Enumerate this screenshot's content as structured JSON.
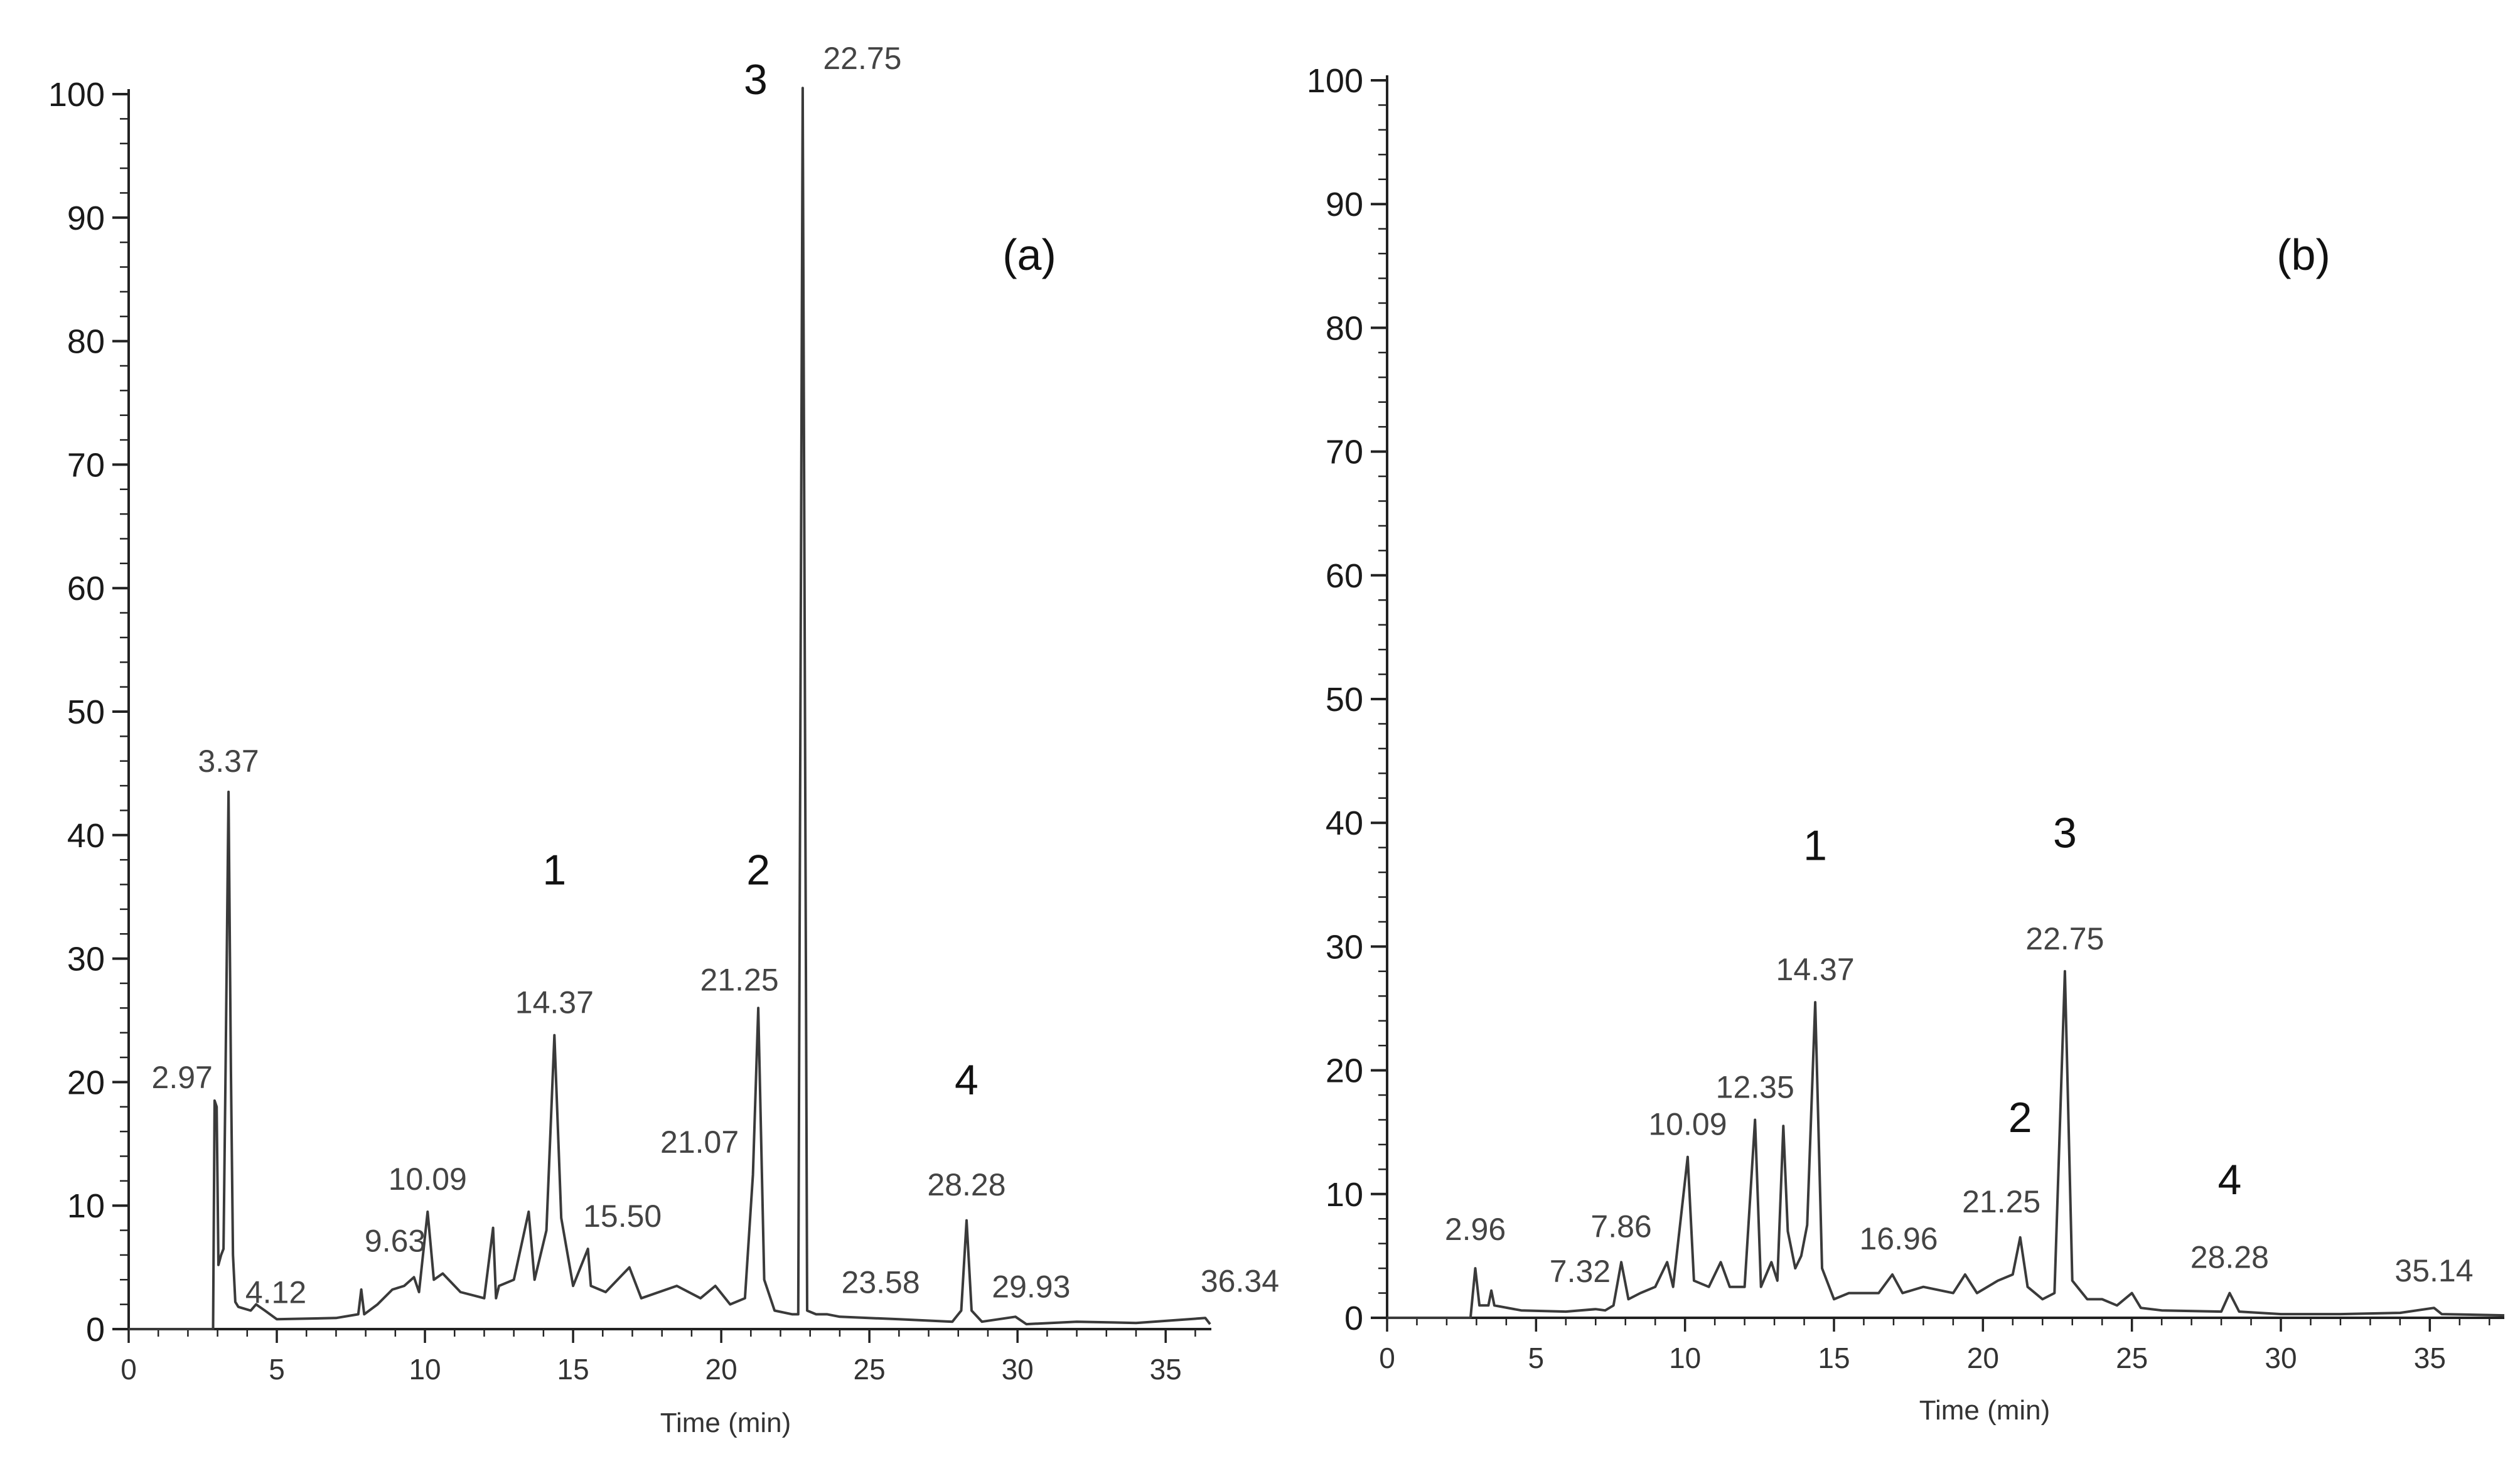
{
  "chart_data": [
    {
      "type": "line",
      "panel_label": "(a)",
      "xlabel": "Time (min)",
      "ylabel": "",
      "xlim": [
        0,
        36.5
      ],
      "ylim": [
        0,
        100
      ],
      "xticks": [
        "0",
        "5",
        "10",
        "15",
        "20",
        "25",
        "30",
        "35"
      ],
      "yticks": [
        "0",
        "10",
        "20",
        "30",
        "40",
        "50",
        "60",
        "70",
        "80",
        "90",
        "100"
      ],
      "peak_labels": [
        {
          "x": 2.97,
          "y": 18.5,
          "label": "2.97"
        },
        {
          "x": 3.37,
          "y": 43.5,
          "label": "3.37"
        },
        {
          "x": 4.12,
          "y": 1.0,
          "label": "4.12"
        },
        {
          "x": 9.63,
          "y": 4.0,
          "label": "9.63"
        },
        {
          "x": 10.09,
          "y": 9.5,
          "label": "10.09"
        },
        {
          "x": 14.37,
          "y": 23.8,
          "label": "14.37"
        },
        {
          "x": 15.5,
          "y": 6.5,
          "label": "15.50"
        },
        {
          "x": 21.07,
          "y": 12.5,
          "label": "21.07"
        },
        {
          "x": 21.25,
          "y": 26.0,
          "label": "21.25"
        },
        {
          "x": 22.75,
          "y": 100.5,
          "label": "22.75"
        },
        {
          "x": 23.58,
          "y": 1.0,
          "label": "23.58"
        },
        {
          "x": 28.28,
          "y": 8.8,
          "label": "28.28"
        },
        {
          "x": 29.93,
          "y": 0.8,
          "label": "29.93"
        },
        {
          "x": 36.34,
          "y": 0.9,
          "label": "36.34"
        }
      ],
      "compound_labels": [
        {
          "x": 14.37,
          "label": "1"
        },
        {
          "x": 21.25,
          "label": "2"
        },
        {
          "x": 22.75,
          "label": "3"
        },
        {
          "x": 28.28,
          "label": "4"
        }
      ],
      "series": [
        {
          "x": [
            0,
            2.85,
            2.9,
            2.97,
            3.03,
            3.12,
            3.2,
            3.27,
            3.37,
            3.45,
            3.52,
            3.6,
            3.7,
            4.12,
            4.3,
            4.6,
            5,
            7,
            7.75,
            7.85,
            7.95,
            8.4,
            8.9,
            9.3,
            9.63,
            9.8,
            10.09,
            10.3,
            10.6,
            11.2,
            12,
            12.3,
            12.4,
            12.5,
            13,
            13.5,
            13.7,
            14.1,
            14.37,
            14.6,
            15,
            15.5,
            15.6,
            16.1,
            16.9,
            17.3,
            18.5,
            19.3,
            19.8,
            20.3,
            20.8,
            21.07,
            21.25,
            21.45,
            21.8,
            22.4,
            22.6,
            22.75,
            22.9,
            23.2,
            23.58,
            24,
            26,
            27.8,
            28.1,
            28.28,
            28.45,
            28.8,
            29.93,
            30.3,
            32,
            34,
            36.34,
            36.5
          ],
          "y": [
            0,
            0,
            18.5,
            18,
            5.2,
            6,
            6.5,
            21,
            43.5,
            21,
            6,
            2.2,
            1.8,
            1.5,
            2,
            1.5,
            0.8,
            0.9,
            1.2,
            3.2,
            1.2,
            2,
            3.2,
            3.5,
            4.2,
            3,
            9.5,
            4,
            4.5,
            3,
            2.5,
            8.2,
            2.5,
            3.5,
            4,
            9.5,
            4,
            8,
            23.8,
            9,
            3.5,
            6.5,
            3.5,
            3,
            5,
            2.5,
            3.5,
            2.5,
            3.5,
            2,
            2.5,
            12.5,
            26,
            4,
            1.5,
            1.2,
            1.2,
            100.5,
            1.5,
            1.2,
            1.2,
            1,
            0.8,
            0.6,
            1.5,
            8.8,
            1.5,
            0.6,
            1,
            0.4,
            0.6,
            0.5,
            0.9,
            0.4
          ]
        }
      ]
    },
    {
      "type": "line",
      "panel_label": "(b)",
      "xlabel": "Time (min)",
      "ylabel": "",
      "xlim": [
        0,
        37.5
      ],
      "ylim": [
        0,
        100
      ],
      "xticks": [
        "0",
        "5",
        "10",
        "15",
        "20",
        "25",
        "30",
        "35"
      ],
      "yticks": [
        "0",
        "10",
        "20",
        "30",
        "40",
        "50",
        "60",
        "70",
        "80",
        "90",
        "100"
      ],
      "peak_labels": [
        {
          "x": 2.96,
          "y": 4.0,
          "label": "2.96"
        },
        {
          "x": 7.32,
          "y": 0.6,
          "label": "7.32"
        },
        {
          "x": 7.86,
          "y": 4.5,
          "label": "7.86"
        },
        {
          "x": 10.09,
          "y": 13.0,
          "label": "10.09"
        },
        {
          "x": 12.35,
          "y": 16.0,
          "label": "12.35"
        },
        {
          "x": 14.37,
          "y": 25.5,
          "label": "14.37"
        },
        {
          "x": 16.96,
          "y": 3.5,
          "label": "16.96"
        },
        {
          "x": 21.25,
          "y": 6.5,
          "label": "21.25"
        },
        {
          "x": 22.75,
          "y": 28.0,
          "label": "22.75"
        },
        {
          "x": 28.28,
          "y": 2.0,
          "label": "28.28"
        },
        {
          "x": 35.14,
          "y": 0.8,
          "label": "35.14"
        }
      ],
      "compound_labels": [
        {
          "x": 14.37,
          "label": "1"
        },
        {
          "x": 21.25,
          "label": "2"
        },
        {
          "x": 22.75,
          "label": "3"
        },
        {
          "x": 28.28,
          "label": "4"
        }
      ],
      "series": [
        {
          "x": [
            0,
            2.8,
            2.96,
            3.1,
            3.4,
            3.5,
            3.6,
            4.5,
            6,
            7,
            7.32,
            7.6,
            7.86,
            8.1,
            8.5,
            9,
            9.4,
            9.6,
            10.09,
            10.3,
            10.8,
            11.2,
            11.5,
            12,
            12.35,
            12.55,
            12.9,
            13.1,
            13.3,
            13.45,
            13.7,
            13.9,
            14.1,
            14.37,
            14.6,
            15,
            15.5,
            16.5,
            16.96,
            17.3,
            18,
            19,
            19.4,
            19.8,
            20.5,
            21,
            21.25,
            21.5,
            22,
            22.4,
            22.75,
            23,
            23.5,
            24,
            24.5,
            25,
            25.3,
            26,
            28,
            28.28,
            28.6,
            30,
            32,
            34,
            35.14,
            35.4,
            37.5
          ],
          "y": [
            0,
            0,
            4,
            1,
            1,
            2.2,
            1,
            0.6,
            0.5,
            0.7,
            0.6,
            1,
            4.5,
            1.5,
            2,
            2.5,
            4.5,
            2.5,
            13,
            3,
            2.5,
            4.5,
            2.5,
            2.5,
            16,
            2.5,
            4.5,
            3,
            15.5,
            7,
            4,
            5,
            7.5,
            25.5,
            4,
            1.5,
            2,
            2,
            3.5,
            2,
            2.5,
            2,
            3.5,
            2,
            3,
            3.5,
            6.5,
            2.5,
            1.5,
            2,
            28,
            3,
            1.5,
            1.5,
            1,
            2,
            0.8,
            0.6,
            0.5,
            2,
            0.5,
            0.3,
            0.3,
            0.4,
            0.8,
            0.3,
            0.2
          ]
        }
      ]
    }
  ]
}
